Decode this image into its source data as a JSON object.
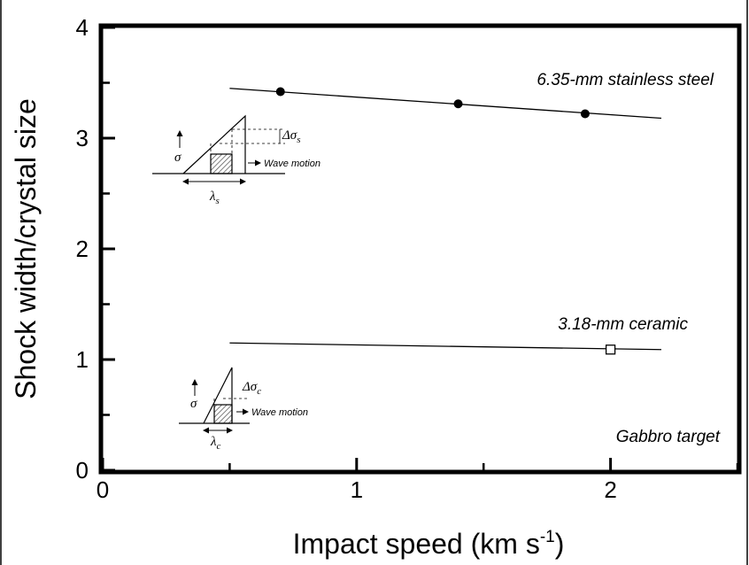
{
  "chart_data": {
    "type": "line",
    "xlabel": "Impact speed (km s",
    "xlabel_sup": "-1",
    "xlabel_close": ")",
    "ylabel": "Shock width/crystal size",
    "xlim": [
      0,
      2.5
    ],
    "ylim": [
      0,
      4
    ],
    "x_ticks": [
      "0",
      "1",
      "2"
    ],
    "y_ticks": [
      "0",
      "1",
      "2",
      "3",
      "4"
    ],
    "grid": false,
    "series": [
      {
        "name": "6.35-mm stainless steel",
        "marker": "filled-circle",
        "line": {
          "x": [
            0.5,
            2.2
          ],
          "y": [
            3.45,
            3.18
          ]
        },
        "points": [
          {
            "x": 0.7,
            "y": 3.42
          },
          {
            "x": 1.4,
            "y": 3.31
          },
          {
            "x": 1.9,
            "y": 3.22
          }
        ]
      },
      {
        "name": "3.18-mm ceramic",
        "marker": "open-square",
        "line": {
          "x": [
            0.5,
            2.2
          ],
          "y": [
            1.15,
            1.09
          ]
        },
        "points": [
          {
            "x": 2.0,
            "y": 1.09
          }
        ]
      }
    ],
    "annotations": {
      "target": "Gabbro target",
      "inset_steel": {
        "sigma": "σ",
        "delta_sigma": "Δσ",
        "delta_sub": "s",
        "lambda": "λ",
        "lambda_sub": "s",
        "wave": "Wave motion"
      },
      "inset_ceramic": {
        "sigma": "σ",
        "delta_sigma": "Δσ",
        "delta_sub": "c",
        "lambda": "λ",
        "lambda_sub": "c",
        "wave": "Wave motion"
      }
    }
  }
}
